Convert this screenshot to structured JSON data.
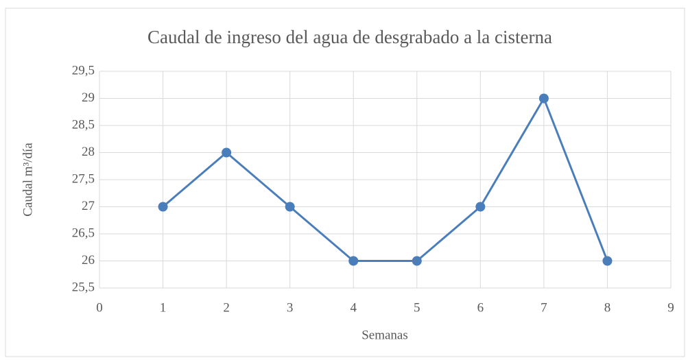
{
  "chart_data": {
    "type": "line",
    "title": "Caudal de ingreso del agua de desgrabado a la cisterna",
    "xlabel": "Semanas",
    "ylabel": "Caudal m³/día",
    "x": [
      1,
      2,
      3,
      4,
      5,
      6,
      7,
      8
    ],
    "series": [
      {
        "name": "Caudal",
        "color": "#4a7ebb",
        "values": [
          27,
          28,
          27,
          26,
          26,
          27,
          29,
          26
        ]
      }
    ],
    "xlim": [
      0,
      9
    ],
    "xticks": [
      0,
      1,
      2,
      3,
      4,
      5,
      6,
      7,
      8,
      9
    ],
    "ylim": [
      25.5,
      29.5
    ],
    "yticks": [
      {
        "value": 25.5,
        "label": "25,5"
      },
      26,
      {
        "value": 26.5,
        "label": "26,5"
      },
      27,
      {
        "value": 27.5,
        "label": "27,5"
      },
      28,
      {
        "value": 28.5,
        "label": "28,5"
      },
      29,
      {
        "value": 29.5,
        "label": "29,5"
      }
    ],
    "grid": true
  }
}
